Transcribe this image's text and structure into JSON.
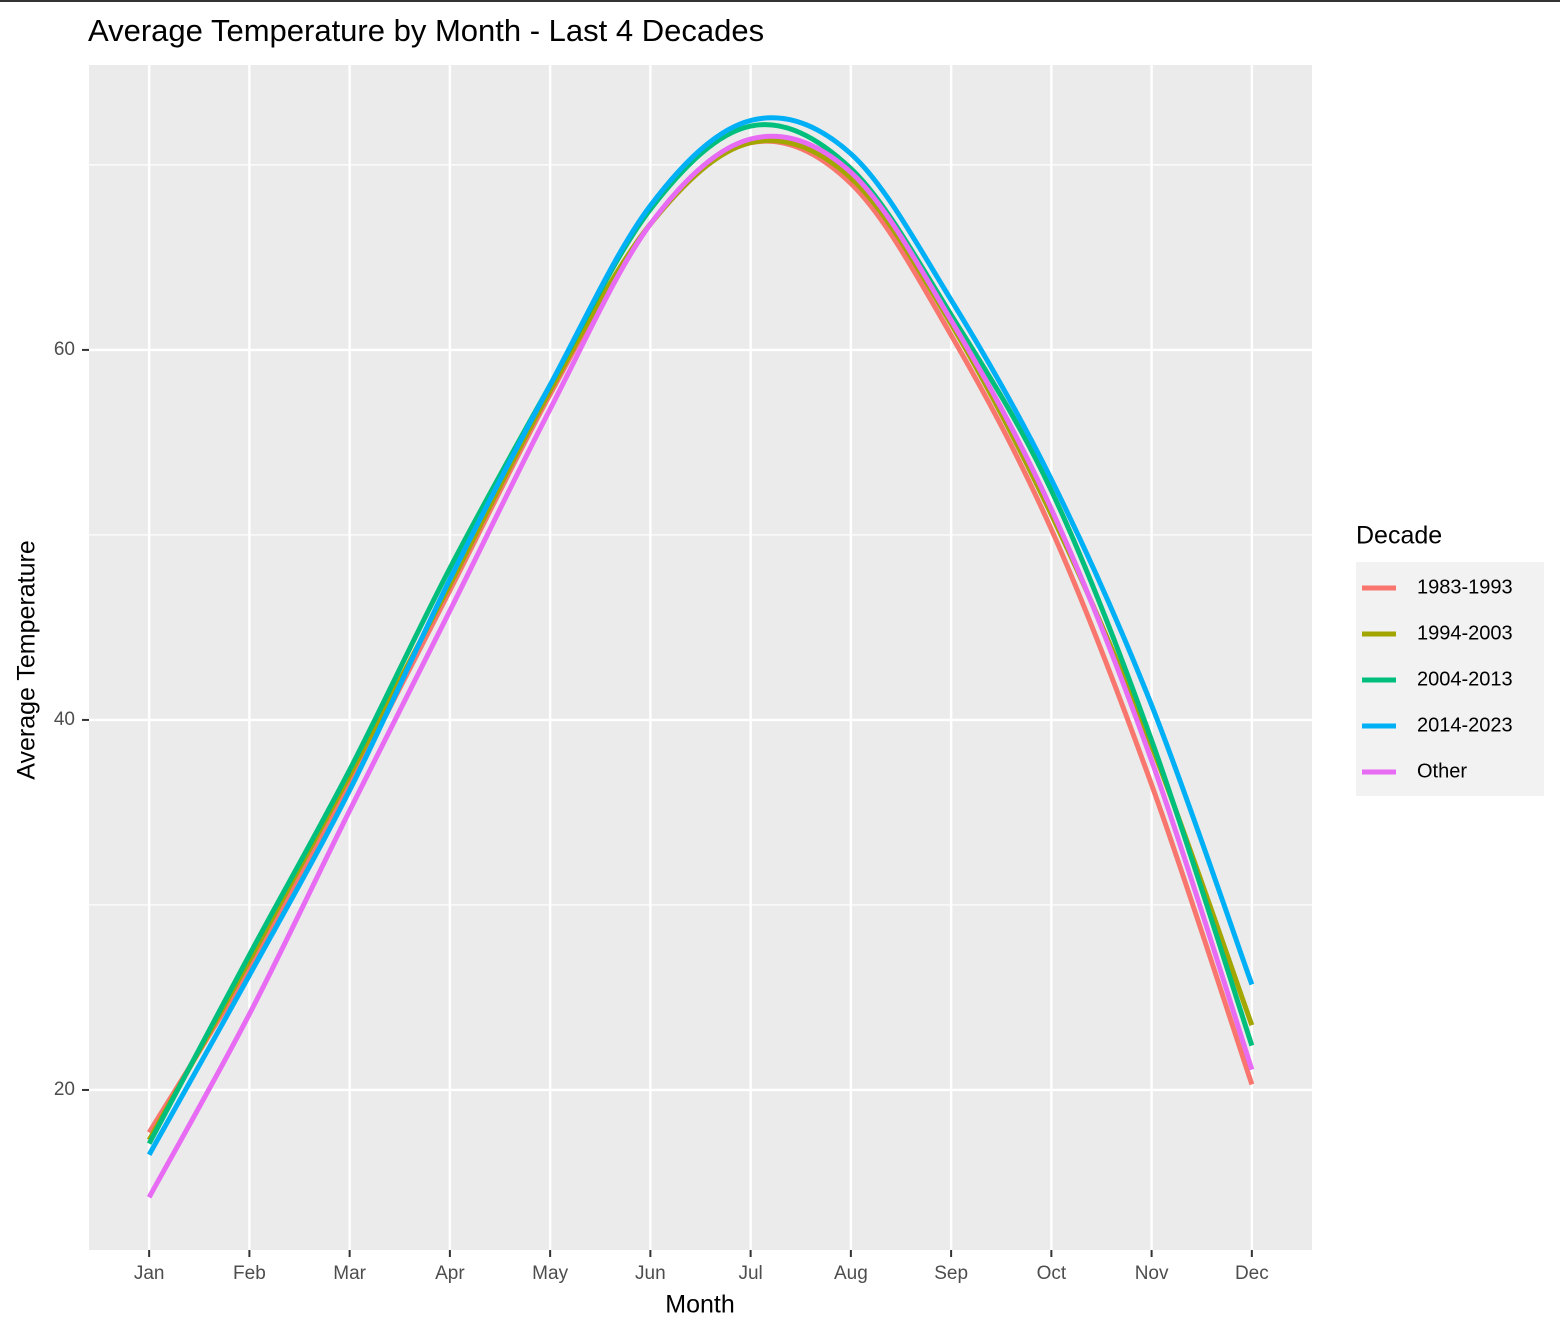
{
  "chart_data": {
    "type": "line",
    "title": "Average Temperature by Month - Last 4 Decades",
    "x_label": "Month",
    "y_label": "Average Temperature",
    "categories": [
      "Jan",
      "Feb",
      "Mar",
      "Apr",
      "May",
      "Jun",
      "Jul",
      "Aug",
      "Sep",
      "Oct",
      "Nov",
      "Dec"
    ],
    "series": [
      {
        "name": "1983-1993",
        "color": "#F8766D",
        "values": [
          17.7,
          26.6,
          36.5,
          47.0,
          57.6,
          66.8,
          71.2,
          69.0,
          60.8,
          50.3,
          36.5,
          20.3
        ]
      },
      {
        "name": "1994-2003",
        "color": "#A3A500",
        "values": [
          17.3,
          27.0,
          37.0,
          47.3,
          57.8,
          66.8,
          71.2,
          69.3,
          61.4,
          51.1,
          38.6,
          23.5
        ]
      },
      {
        "name": "2004-2013",
        "color": "#00BF7D",
        "values": [
          17.1,
          27.3,
          37.3,
          48.2,
          58.1,
          67.6,
          72.1,
          69.8,
          61.9,
          52.4,
          38.9,
          22.4
        ]
      },
      {
        "name": "2014-2023",
        "color": "#00B0F6",
        "values": [
          16.5,
          26.2,
          36.2,
          47.6,
          58.1,
          67.8,
          72.4,
          70.6,
          62.7,
          53.0,
          40.8,
          25.7
        ]
      },
      {
        "name": "Other",
        "color": "#E76BF3",
        "values": [
          14.2,
          24.1,
          35.1,
          45.9,
          56.8,
          66.8,
          71.4,
          69.6,
          61.6,
          51.4,
          37.8,
          21.1
        ]
      }
    ],
    "legend_title": "Decade",
    "legend": "right",
    "ylim": [
      11.35,
      75.4
    ],
    "yticks": [
      20,
      40,
      60
    ],
    "grid": true
  }
}
